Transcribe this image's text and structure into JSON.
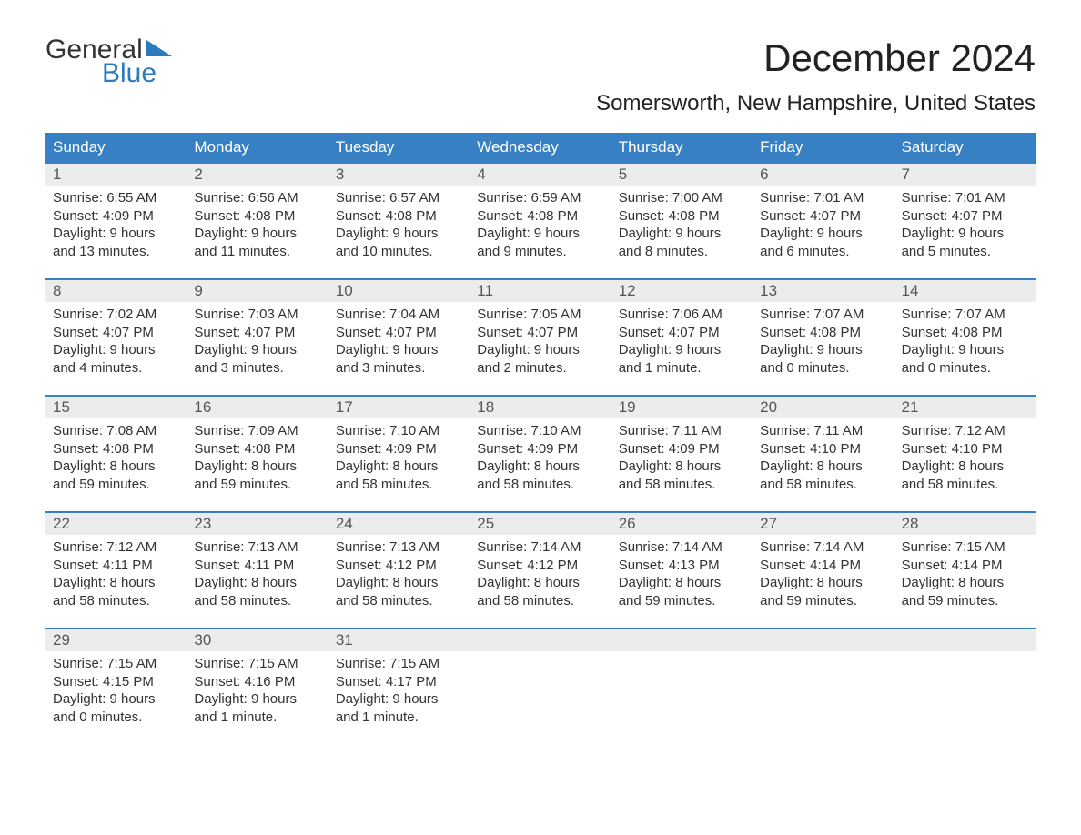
{
  "logo": {
    "text_top": "General",
    "text_bottom": "Blue",
    "flag_color": "#2b7bbf",
    "text_color_top": "#333333"
  },
  "header": {
    "month_title": "December 2024",
    "location": "Somersworth, New Hampshire, United States"
  },
  "colors": {
    "header_bg": "#3780c3",
    "header_fg": "#ffffff",
    "daynum_bg": "#ececec",
    "week_border": "#3780c3",
    "body_text": "#333333",
    "background": "#ffffff"
  },
  "days_of_week": [
    "Sunday",
    "Monday",
    "Tuesday",
    "Wednesday",
    "Thursday",
    "Friday",
    "Saturday"
  ],
  "weeks": [
    [
      {
        "n": "1",
        "sunrise": "Sunrise: 6:55 AM",
        "sunset": "Sunset: 4:09 PM",
        "dl1": "Daylight: 9 hours",
        "dl2": "and 13 minutes."
      },
      {
        "n": "2",
        "sunrise": "Sunrise: 6:56 AM",
        "sunset": "Sunset: 4:08 PM",
        "dl1": "Daylight: 9 hours",
        "dl2": "and 11 minutes."
      },
      {
        "n": "3",
        "sunrise": "Sunrise: 6:57 AM",
        "sunset": "Sunset: 4:08 PM",
        "dl1": "Daylight: 9 hours",
        "dl2": "and 10 minutes."
      },
      {
        "n": "4",
        "sunrise": "Sunrise: 6:59 AM",
        "sunset": "Sunset: 4:08 PM",
        "dl1": "Daylight: 9 hours",
        "dl2": "and 9 minutes."
      },
      {
        "n": "5",
        "sunrise": "Sunrise: 7:00 AM",
        "sunset": "Sunset: 4:08 PM",
        "dl1": "Daylight: 9 hours",
        "dl2": "and 8 minutes."
      },
      {
        "n": "6",
        "sunrise": "Sunrise: 7:01 AM",
        "sunset": "Sunset: 4:07 PM",
        "dl1": "Daylight: 9 hours",
        "dl2": "and 6 minutes."
      },
      {
        "n": "7",
        "sunrise": "Sunrise: 7:01 AM",
        "sunset": "Sunset: 4:07 PM",
        "dl1": "Daylight: 9 hours",
        "dl2": "and 5 minutes."
      }
    ],
    [
      {
        "n": "8",
        "sunrise": "Sunrise: 7:02 AM",
        "sunset": "Sunset: 4:07 PM",
        "dl1": "Daylight: 9 hours",
        "dl2": "and 4 minutes."
      },
      {
        "n": "9",
        "sunrise": "Sunrise: 7:03 AM",
        "sunset": "Sunset: 4:07 PM",
        "dl1": "Daylight: 9 hours",
        "dl2": "and 3 minutes."
      },
      {
        "n": "10",
        "sunrise": "Sunrise: 7:04 AM",
        "sunset": "Sunset: 4:07 PM",
        "dl1": "Daylight: 9 hours",
        "dl2": "and 3 minutes."
      },
      {
        "n": "11",
        "sunrise": "Sunrise: 7:05 AM",
        "sunset": "Sunset: 4:07 PM",
        "dl1": "Daylight: 9 hours",
        "dl2": "and 2 minutes."
      },
      {
        "n": "12",
        "sunrise": "Sunrise: 7:06 AM",
        "sunset": "Sunset: 4:07 PM",
        "dl1": "Daylight: 9 hours",
        "dl2": "and 1 minute."
      },
      {
        "n": "13",
        "sunrise": "Sunrise: 7:07 AM",
        "sunset": "Sunset: 4:08 PM",
        "dl1": "Daylight: 9 hours",
        "dl2": "and 0 minutes."
      },
      {
        "n": "14",
        "sunrise": "Sunrise: 7:07 AM",
        "sunset": "Sunset: 4:08 PM",
        "dl1": "Daylight: 9 hours",
        "dl2": "and 0 minutes."
      }
    ],
    [
      {
        "n": "15",
        "sunrise": "Sunrise: 7:08 AM",
        "sunset": "Sunset: 4:08 PM",
        "dl1": "Daylight: 8 hours",
        "dl2": "and 59 minutes."
      },
      {
        "n": "16",
        "sunrise": "Sunrise: 7:09 AM",
        "sunset": "Sunset: 4:08 PM",
        "dl1": "Daylight: 8 hours",
        "dl2": "and 59 minutes."
      },
      {
        "n": "17",
        "sunrise": "Sunrise: 7:10 AM",
        "sunset": "Sunset: 4:09 PM",
        "dl1": "Daylight: 8 hours",
        "dl2": "and 58 minutes."
      },
      {
        "n": "18",
        "sunrise": "Sunrise: 7:10 AM",
        "sunset": "Sunset: 4:09 PM",
        "dl1": "Daylight: 8 hours",
        "dl2": "and 58 minutes."
      },
      {
        "n": "19",
        "sunrise": "Sunrise: 7:11 AM",
        "sunset": "Sunset: 4:09 PM",
        "dl1": "Daylight: 8 hours",
        "dl2": "and 58 minutes."
      },
      {
        "n": "20",
        "sunrise": "Sunrise: 7:11 AM",
        "sunset": "Sunset: 4:10 PM",
        "dl1": "Daylight: 8 hours",
        "dl2": "and 58 minutes."
      },
      {
        "n": "21",
        "sunrise": "Sunrise: 7:12 AM",
        "sunset": "Sunset: 4:10 PM",
        "dl1": "Daylight: 8 hours",
        "dl2": "and 58 minutes."
      }
    ],
    [
      {
        "n": "22",
        "sunrise": "Sunrise: 7:12 AM",
        "sunset": "Sunset: 4:11 PM",
        "dl1": "Daylight: 8 hours",
        "dl2": "and 58 minutes."
      },
      {
        "n": "23",
        "sunrise": "Sunrise: 7:13 AM",
        "sunset": "Sunset: 4:11 PM",
        "dl1": "Daylight: 8 hours",
        "dl2": "and 58 minutes."
      },
      {
        "n": "24",
        "sunrise": "Sunrise: 7:13 AM",
        "sunset": "Sunset: 4:12 PM",
        "dl1": "Daylight: 8 hours",
        "dl2": "and 58 minutes."
      },
      {
        "n": "25",
        "sunrise": "Sunrise: 7:14 AM",
        "sunset": "Sunset: 4:12 PM",
        "dl1": "Daylight: 8 hours",
        "dl2": "and 58 minutes."
      },
      {
        "n": "26",
        "sunrise": "Sunrise: 7:14 AM",
        "sunset": "Sunset: 4:13 PM",
        "dl1": "Daylight: 8 hours",
        "dl2": "and 59 minutes."
      },
      {
        "n": "27",
        "sunrise": "Sunrise: 7:14 AM",
        "sunset": "Sunset: 4:14 PM",
        "dl1": "Daylight: 8 hours",
        "dl2": "and 59 minutes."
      },
      {
        "n": "28",
        "sunrise": "Sunrise: 7:15 AM",
        "sunset": "Sunset: 4:14 PM",
        "dl1": "Daylight: 8 hours",
        "dl2": "and 59 minutes."
      }
    ],
    [
      {
        "n": "29",
        "sunrise": "Sunrise: 7:15 AM",
        "sunset": "Sunset: 4:15 PM",
        "dl1": "Daylight: 9 hours",
        "dl2": "and 0 minutes."
      },
      {
        "n": "30",
        "sunrise": "Sunrise: 7:15 AM",
        "sunset": "Sunset: 4:16 PM",
        "dl1": "Daylight: 9 hours",
        "dl2": "and 1 minute."
      },
      {
        "n": "31",
        "sunrise": "Sunrise: 7:15 AM",
        "sunset": "Sunset: 4:17 PM",
        "dl1": "Daylight: 9 hours",
        "dl2": "and 1 minute."
      },
      {
        "empty": true
      },
      {
        "empty": true
      },
      {
        "empty": true
      },
      {
        "empty": true
      }
    ]
  ]
}
